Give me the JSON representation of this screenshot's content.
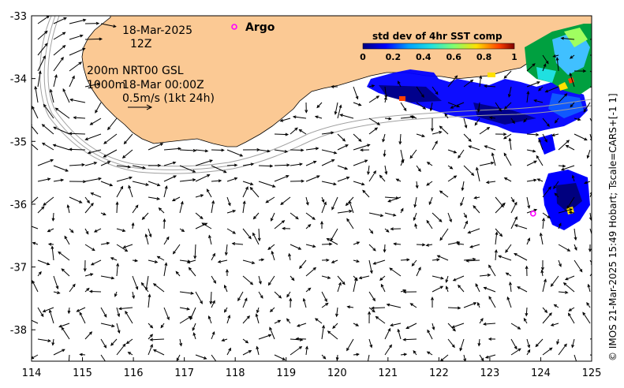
{
  "map": {
    "lon_range": [
      114,
      125
    ],
    "lat_range": [
      -38.5,
      -33
    ],
    "lon_ticks": [
      "114",
      "115",
      "116",
      "117",
      "118",
      "119",
      "120",
      "121",
      "122",
      "123",
      "124",
      "125"
    ],
    "lat_ticks": [
      "-33",
      "-34",
      "-35",
      "-36",
      "-37",
      "-38"
    ],
    "colors": {
      "land": "#fbc994",
      "ocean": "#ffffff",
      "argo": "#ff00ff"
    }
  },
  "annotations": {
    "date": "18-Mar-2025",
    "hour": "12Z",
    "depth_200": "200m",
    "depth_1000": "1000m",
    "product": "NRT00 GSL",
    "product_time": "18-Mar 00:00Z",
    "scale_label": "0.5m/s (1kt 24h)"
  },
  "legend": {
    "argo_label": "Argo",
    "colorbar_title": "std dev of 4hr SST comp",
    "colorbar_ticks": [
      "0",
      "0.2",
      "0.4",
      "0.6",
      "0.8",
      "1"
    ]
  },
  "credit": "© IMOS 21-Mar-2025 15:49 Hobart; Tscale=CARS+[-1 1]",
  "argo_floats": [
    {
      "lon": 123.85,
      "lat": -36.15
    }
  ]
}
